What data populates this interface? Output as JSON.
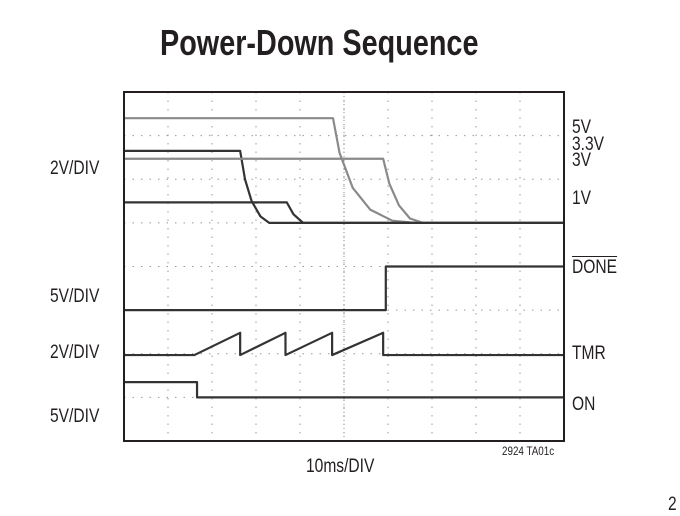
{
  "chart_data": {
    "type": "line",
    "title": "Power-Down Sequence",
    "xlabel": "10ms/DIV",
    "x_unit": "ms",
    "xlim": [
      0,
      100
    ],
    "ylim_divisions": [
      0,
      8
    ],
    "grid": true,
    "scale_labels": [
      "2V/DIV",
      "5V/DIV",
      "2V/DIV",
      "5V/DIV"
    ],
    "footnote": "2924 TA01c",
    "series": [
      {
        "name": "5V",
        "color": "#8a8a8a",
        "points": [
          [
            0,
            7.4
          ],
          [
            47.5,
            7.4
          ],
          [
            49,
            6.6
          ],
          [
            52,
            5.8
          ],
          [
            56,
            5.3
          ],
          [
            61,
            5.05
          ],
          [
            66,
            5.0
          ],
          [
            100,
            5.0
          ]
        ]
      },
      {
        "name": "3.3V",
        "color": "#333333",
        "points": [
          [
            0,
            6.65
          ],
          [
            26.4,
            6.65
          ],
          [
            27.5,
            6.0
          ],
          [
            29,
            5.5
          ],
          [
            31,
            5.15
          ],
          [
            33,
            5.0
          ],
          [
            100,
            5.0
          ]
        ]
      },
      {
        "name": "3V",
        "color": "#8a8a8a",
        "points": [
          [
            0,
            6.47
          ],
          [
            58.9,
            6.47
          ],
          [
            60.3,
            5.9
          ],
          [
            62.5,
            5.4
          ],
          [
            65,
            5.1
          ],
          [
            68,
            5.0
          ],
          [
            100,
            5.0
          ]
        ]
      },
      {
        "name": "1V",
        "color": "#333333",
        "points": [
          [
            0,
            5.47
          ],
          [
            37,
            5.47
          ],
          [
            38.5,
            5.2
          ],
          [
            40.7,
            5.0
          ],
          [
            100,
            5.0
          ]
        ]
      },
      {
        "name": "DONE",
        "color": "#333333",
        "points": [
          [
            0,
            3.0
          ],
          [
            59.5,
            3.0
          ],
          [
            59.5,
            4.0
          ],
          [
            100,
            4.0
          ]
        ]
      },
      {
        "name": "TMR",
        "color": "#333333",
        "points": [
          [
            0,
            1.97
          ],
          [
            16,
            1.97
          ],
          [
            26.4,
            2.48
          ],
          [
            26.4,
            1.97
          ],
          [
            36.7,
            2.48
          ],
          [
            36.7,
            1.97
          ],
          [
            47.3,
            2.48
          ],
          [
            47.3,
            1.97
          ],
          [
            58.9,
            2.48
          ],
          [
            58.9,
            1.97
          ],
          [
            100,
            1.97
          ]
        ]
      },
      {
        "name": "ON",
        "color": "#333333",
        "points": [
          [
            0,
            1.35
          ],
          [
            16.6,
            1.35
          ],
          [
            16.6,
            1.0
          ],
          [
            100,
            1.0
          ]
        ]
      }
    ]
  },
  "page_number_fragment": "2"
}
